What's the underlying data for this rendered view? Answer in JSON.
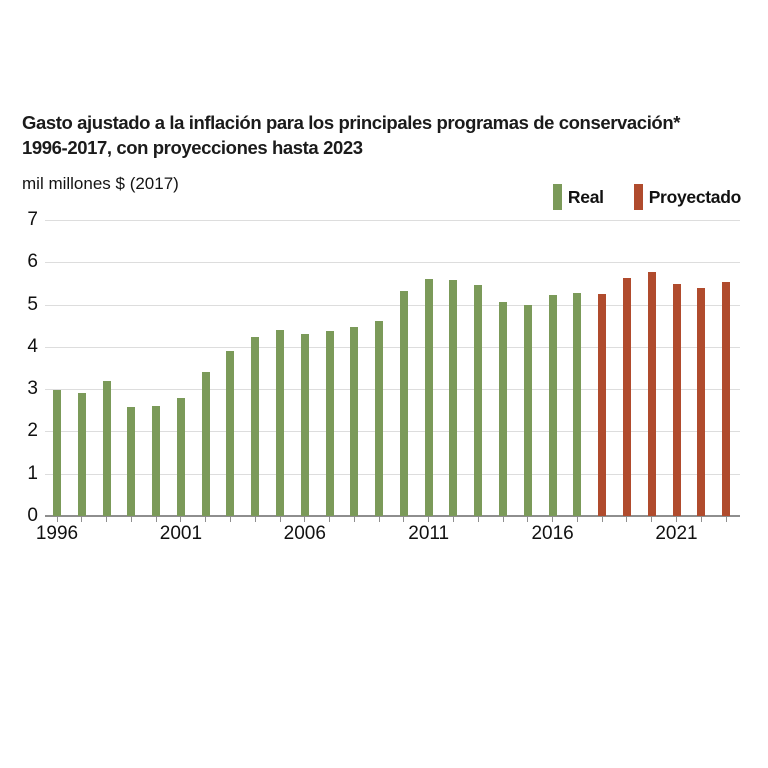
{
  "title": {
    "line1": "Gasto ajustado a la inflación para los principales programas de conservación*",
    "line2": "1996-2017, con proyecciones hasta 2023"
  },
  "unit_label": "mil millones $ (2017)",
  "legend": [
    {
      "label": "Real",
      "color": "#7b9a59"
    },
    {
      "label": "Proyectado",
      "color": "#b04b2d"
    }
  ],
  "colors": {
    "real": "#7b9a59",
    "projected": "#b04b2d",
    "gridline": "#dddddd",
    "axis": "#8e8e8e",
    "text": "#111111"
  },
  "chart_data": {
    "type": "bar",
    "title": "Gasto ajustado a la inflación para los principales programas de conservación* 1996-2017, con proyecciones hasta 2023",
    "ylabel": "mil millones $ (2017)",
    "xlabel": "",
    "ylim": [
      0,
      7
    ],
    "yticks": [
      0,
      1,
      2,
      3,
      4,
      5,
      6,
      7
    ],
    "xticks": [
      1996,
      2001,
      2006,
      2011,
      2016,
      2021
    ],
    "grid": "horizontal",
    "legend_position": "top-right",
    "categories": [
      1996,
      1997,
      1998,
      1999,
      2000,
      2001,
      2002,
      2003,
      2004,
      2005,
      2006,
      2007,
      2008,
      2009,
      2010,
      2011,
      2012,
      2013,
      2014,
      2015,
      2016,
      2017,
      2018,
      2019,
      2020,
      2021,
      2022,
      2023
    ],
    "series": [
      {
        "name": "Real",
        "color": "#7b9a59",
        "values": [
          2.97,
          2.92,
          3.2,
          2.58,
          2.6,
          2.78,
          3.4,
          3.9,
          4.23,
          4.4,
          4.3,
          4.37,
          4.48,
          4.6,
          5.32,
          5.6,
          5.58,
          5.47,
          5.07,
          5.0,
          5.23,
          5.27,
          null,
          null,
          null,
          null,
          null,
          null
        ]
      },
      {
        "name": "Proyectado",
        "color": "#b04b2d",
        "values": [
          null,
          null,
          null,
          null,
          null,
          null,
          null,
          null,
          null,
          null,
          null,
          null,
          null,
          null,
          null,
          null,
          null,
          null,
          null,
          null,
          null,
          null,
          5.24,
          5.64,
          5.78,
          5.49,
          5.39,
          5.54
        ]
      }
    ]
  }
}
